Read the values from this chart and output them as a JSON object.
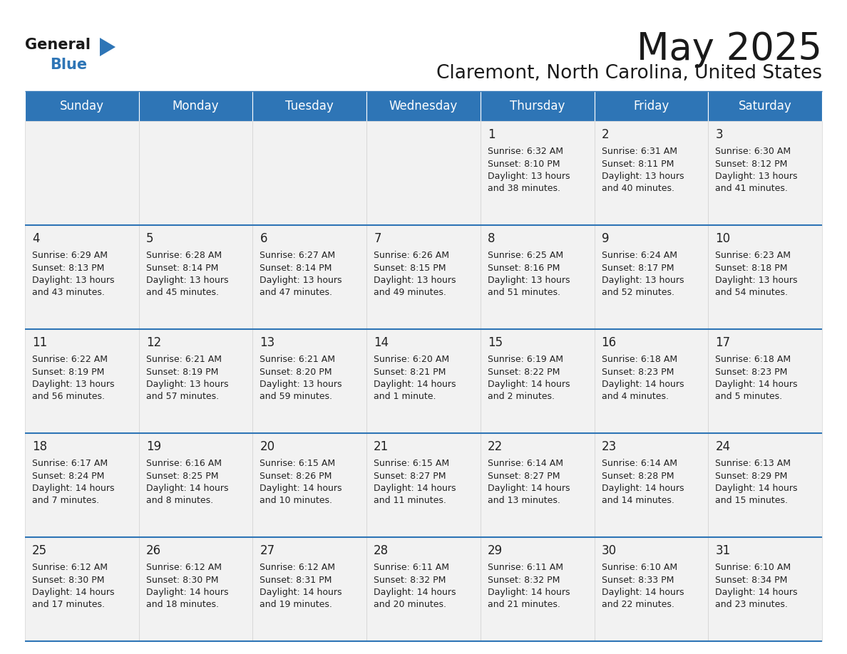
{
  "title": "May 2025",
  "subtitle": "Claremont, North Carolina, United States",
  "header_bg": "#2E75B6",
  "header_text_color": "#FFFFFF",
  "cell_bg": "#F2F2F2",
  "separator_color": "#2E75B6",
  "text_color": "#222222",
  "day_names": [
    "Sunday",
    "Monday",
    "Tuesday",
    "Wednesday",
    "Thursday",
    "Friday",
    "Saturday"
  ],
  "weeks": [
    [
      {
        "day": "",
        "text": ""
      },
      {
        "day": "",
        "text": ""
      },
      {
        "day": "",
        "text": ""
      },
      {
        "day": "",
        "text": ""
      },
      {
        "day": "1",
        "text": "Sunrise: 6:32 AM\nSunset: 8:10 PM\nDaylight: 13 hours\nand 38 minutes."
      },
      {
        "day": "2",
        "text": "Sunrise: 6:31 AM\nSunset: 8:11 PM\nDaylight: 13 hours\nand 40 minutes."
      },
      {
        "day": "3",
        "text": "Sunrise: 6:30 AM\nSunset: 8:12 PM\nDaylight: 13 hours\nand 41 minutes."
      }
    ],
    [
      {
        "day": "4",
        "text": "Sunrise: 6:29 AM\nSunset: 8:13 PM\nDaylight: 13 hours\nand 43 minutes."
      },
      {
        "day": "5",
        "text": "Sunrise: 6:28 AM\nSunset: 8:14 PM\nDaylight: 13 hours\nand 45 minutes."
      },
      {
        "day": "6",
        "text": "Sunrise: 6:27 AM\nSunset: 8:14 PM\nDaylight: 13 hours\nand 47 minutes."
      },
      {
        "day": "7",
        "text": "Sunrise: 6:26 AM\nSunset: 8:15 PM\nDaylight: 13 hours\nand 49 minutes."
      },
      {
        "day": "8",
        "text": "Sunrise: 6:25 AM\nSunset: 8:16 PM\nDaylight: 13 hours\nand 51 minutes."
      },
      {
        "day": "9",
        "text": "Sunrise: 6:24 AM\nSunset: 8:17 PM\nDaylight: 13 hours\nand 52 minutes."
      },
      {
        "day": "10",
        "text": "Sunrise: 6:23 AM\nSunset: 8:18 PM\nDaylight: 13 hours\nand 54 minutes."
      }
    ],
    [
      {
        "day": "11",
        "text": "Sunrise: 6:22 AM\nSunset: 8:19 PM\nDaylight: 13 hours\nand 56 minutes."
      },
      {
        "day": "12",
        "text": "Sunrise: 6:21 AM\nSunset: 8:19 PM\nDaylight: 13 hours\nand 57 minutes."
      },
      {
        "day": "13",
        "text": "Sunrise: 6:21 AM\nSunset: 8:20 PM\nDaylight: 13 hours\nand 59 minutes."
      },
      {
        "day": "14",
        "text": "Sunrise: 6:20 AM\nSunset: 8:21 PM\nDaylight: 14 hours\nand 1 minute."
      },
      {
        "day": "15",
        "text": "Sunrise: 6:19 AM\nSunset: 8:22 PM\nDaylight: 14 hours\nand 2 minutes."
      },
      {
        "day": "16",
        "text": "Sunrise: 6:18 AM\nSunset: 8:23 PM\nDaylight: 14 hours\nand 4 minutes."
      },
      {
        "day": "17",
        "text": "Sunrise: 6:18 AM\nSunset: 8:23 PM\nDaylight: 14 hours\nand 5 minutes."
      }
    ],
    [
      {
        "day": "18",
        "text": "Sunrise: 6:17 AM\nSunset: 8:24 PM\nDaylight: 14 hours\nand 7 minutes."
      },
      {
        "day": "19",
        "text": "Sunrise: 6:16 AM\nSunset: 8:25 PM\nDaylight: 14 hours\nand 8 minutes."
      },
      {
        "day": "20",
        "text": "Sunrise: 6:15 AM\nSunset: 8:26 PM\nDaylight: 14 hours\nand 10 minutes."
      },
      {
        "day": "21",
        "text": "Sunrise: 6:15 AM\nSunset: 8:27 PM\nDaylight: 14 hours\nand 11 minutes."
      },
      {
        "day": "22",
        "text": "Sunrise: 6:14 AM\nSunset: 8:27 PM\nDaylight: 14 hours\nand 13 minutes."
      },
      {
        "day": "23",
        "text": "Sunrise: 6:14 AM\nSunset: 8:28 PM\nDaylight: 14 hours\nand 14 minutes."
      },
      {
        "day": "24",
        "text": "Sunrise: 6:13 AM\nSunset: 8:29 PM\nDaylight: 14 hours\nand 15 minutes."
      }
    ],
    [
      {
        "day": "25",
        "text": "Sunrise: 6:12 AM\nSunset: 8:30 PM\nDaylight: 14 hours\nand 17 minutes."
      },
      {
        "day": "26",
        "text": "Sunrise: 6:12 AM\nSunset: 8:30 PM\nDaylight: 14 hours\nand 18 minutes."
      },
      {
        "day": "27",
        "text": "Sunrise: 6:12 AM\nSunset: 8:31 PM\nDaylight: 14 hours\nand 19 minutes."
      },
      {
        "day": "28",
        "text": "Sunrise: 6:11 AM\nSunset: 8:32 PM\nDaylight: 14 hours\nand 20 minutes."
      },
      {
        "day": "29",
        "text": "Sunrise: 6:11 AM\nSunset: 8:32 PM\nDaylight: 14 hours\nand 21 minutes."
      },
      {
        "day": "30",
        "text": "Sunrise: 6:10 AM\nSunset: 8:33 PM\nDaylight: 14 hours\nand 22 minutes."
      },
      {
        "day": "31",
        "text": "Sunrise: 6:10 AM\nSunset: 8:34 PM\nDaylight: 14 hours\nand 23 minutes."
      }
    ]
  ],
  "logo_general_color": "#1a1a1a",
  "logo_blue_color": "#2E75B6",
  "title_fontsize": 38,
  "subtitle_fontsize": 19,
  "day_name_fontsize": 12,
  "day_num_fontsize": 12,
  "cell_text_fontsize": 9,
  "logo_fontsize": 15
}
